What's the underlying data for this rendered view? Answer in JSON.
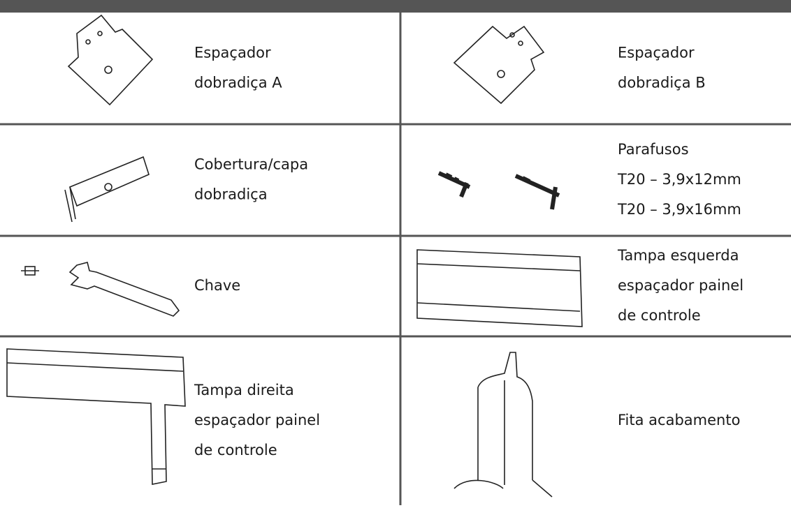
{
  "table": {
    "rows": [
      [
        [
          "Espaçador",
          "dobradiça A"
        ],
        [
          "Espaçador",
          "dobradiça B"
        ]
      ],
      [
        [
          "Cobertura/capa",
          "dobradiça"
        ],
        [
          "Parafusos",
          "T20 – 3,9x12mm",
          "T20 – 3,9x16mm"
        ]
      ],
      [
        [
          "Chave"
        ],
        [
          "Tampa esquerda",
          "espaçador painel",
          "de controle"
        ]
      ],
      [
        [
          "Tampa direita",
          "espaçador painel",
          "de controle"
        ],
        [
          "Fita acabamento"
        ]
      ]
    ]
  }
}
